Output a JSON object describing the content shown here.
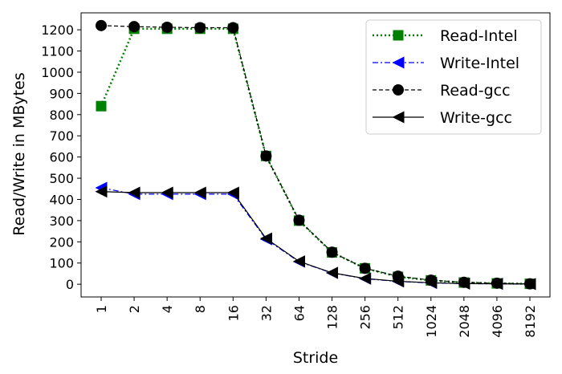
{
  "chart_data": {
    "type": "line",
    "xlabel": "Stride",
    "ylabel": "Read/Write in MBytes",
    "categories": [
      "1",
      "2",
      "4",
      "8",
      "16",
      "32",
      "64",
      "128",
      "256",
      "512",
      "1024",
      "2048",
      "4096",
      "8192"
    ],
    "yticks": [
      0,
      100,
      200,
      300,
      400,
      500,
      600,
      700,
      800,
      900,
      1000,
      1100,
      1200
    ],
    "ylim": [
      -60,
      1280
    ],
    "grid": false,
    "legend_position": "top-right",
    "series": [
      {
        "name": "Read-Intel",
        "color": "#008000",
        "marker": "square",
        "line_style": "dotted",
        "values": [
          840,
          1205,
          1205,
          1205,
          1205,
          605,
          300,
          150,
          75,
          35,
          18,
          8,
          4,
          2
        ]
      },
      {
        "name": "Write-Intel",
        "color": "#0000ff",
        "marker": "triangle-left",
        "line_style": "dashdot",
        "values": [
          455,
          425,
          425,
          425,
          425,
          212,
          106,
          53,
          26,
          13,
          6,
          3,
          2,
          1
        ]
      },
      {
        "name": "Read-gcc",
        "color": "#000000",
        "marker": "circle",
        "line_style": "dashed",
        "values": [
          1220,
          1215,
          1212,
          1210,
          1210,
          605,
          302,
          151,
          75,
          38,
          19,
          9,
          5,
          2
        ]
      },
      {
        "name": "Write-gcc",
        "color": "#000000",
        "marker": "triangle-left",
        "line_style": "solid",
        "values": [
          437,
          432,
          432,
          432,
          432,
          216,
          108,
          54,
          27,
          14,
          7,
          3,
          2,
          1
        ]
      }
    ]
  }
}
